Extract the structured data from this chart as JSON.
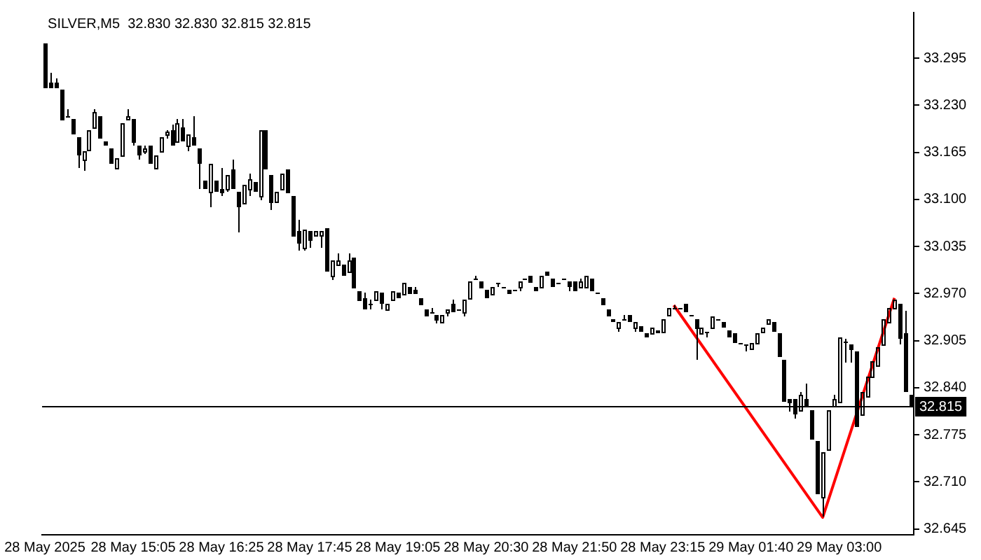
{
  "chart_data": {
    "type": "candlestick",
    "title": "SILVER,M5  32.830 32.830 32.815 32.815",
    "color": "#000000",
    "categories": [
      "28 May 2025",
      null,
      null,
      null,
      null,
      null,
      null,
      null,
      null,
      null,
      null,
      null,
      null,
      null,
      null,
      null,
      "28 May 15:05",
      null,
      null,
      null,
      null,
      null,
      null,
      null,
      null,
      null,
      null,
      null,
      null,
      null,
      null,
      null,
      "28 May 16:25",
      null,
      null,
      null,
      null,
      null,
      null,
      null,
      null,
      null,
      null,
      null,
      null,
      null,
      null,
      null,
      "28 May 17:45",
      null,
      null,
      null,
      null,
      null,
      null,
      null,
      null,
      null,
      null,
      null,
      null,
      null,
      null,
      null,
      "28 May 19:05",
      null,
      null,
      null,
      null,
      null,
      null,
      null,
      null,
      null,
      null,
      null,
      null,
      null,
      null,
      null,
      "28 May 20:30",
      null,
      null,
      null,
      null,
      null,
      null,
      null,
      null,
      null,
      null,
      null,
      null,
      null,
      null,
      null,
      "28 May 21:50",
      null,
      null,
      null,
      null,
      null,
      null,
      null,
      null,
      null,
      null,
      null,
      null,
      null,
      null,
      null,
      "28 May 23:15",
      null,
      null,
      null,
      null,
      null,
      null,
      null,
      null,
      null,
      null,
      null,
      null,
      null,
      null,
      null,
      "29 May 01:40",
      null,
      null,
      null,
      null,
      null,
      null,
      null,
      null,
      null,
      null,
      null,
      null,
      null,
      null,
      null,
      "29 May 03:00",
      null,
      null,
      null,
      null,
      null,
      null,
      null,
      null,
      null,
      null,
      null,
      null,
      null
    ],
    "ohlc": [
      [
        33.316,
        33.316,
        33.254,
        33.254
      ],
      [
        33.261,
        33.275,
        33.254,
        33.254
      ],
      [
        33.261,
        33.267,
        33.254,
        33.254
      ],
      [
        33.252,
        33.252,
        33.21,
        33.21
      ],
      [
        33.214,
        33.225,
        33.213,
        33.214
      ],
      [
        33.212,
        33.212,
        33.19,
        33.19
      ],
      [
        33.185,
        33.185,
        33.143,
        33.16
      ],
      [
        33.155,
        33.166,
        33.139,
        33.166
      ],
      [
        33.168,
        33.196,
        33.168,
        33.196
      ],
      [
        33.199,
        33.225,
        33.199,
        33.22
      ],
      [
        33.215,
        33.215,
        33.184,
        33.184
      ],
      [
        33.18,
        33.18,
        33.174,
        33.174
      ],
      [
        33.17,
        33.17,
        33.15,
        33.15
      ],
      [
        33.144,
        33.157,
        33.144,
        33.157
      ],
      [
        33.16,
        33.206,
        33.16,
        33.206
      ],
      [
        33.211,
        33.225,
        33.211,
        33.215
      ],
      [
        33.212,
        33.212,
        33.174,
        33.179
      ],
      [
        33.175,
        33.175,
        33.155,
        33.16
      ],
      [
        33.166,
        33.175,
        33.163,
        33.171
      ],
      [
        33.175,
        33.175,
        33.15,
        33.15
      ],
      [
        33.144,
        33.16,
        33.141,
        33.16
      ],
      [
        33.166,
        33.185,
        33.166,
        33.185
      ],
      [
        33.19,
        33.196,
        33.184,
        33.193
      ],
      [
        33.196,
        33.203,
        33.175,
        33.175
      ],
      [
        33.181,
        33.212,
        33.181,
        33.205
      ],
      [
        33.199,
        33.212,
        33.181,
        33.181
      ],
      [
        33.175,
        33.19,
        33.166,
        33.19
      ],
      [
        33.185,
        33.215,
        33.174,
        33.174
      ],
      [
        33.17,
        33.17,
        33.114,
        33.15
      ],
      [
        33.127,
        33.127,
        33.114,
        33.114
      ],
      [
        33.111,
        33.15,
        33.09,
        33.15
      ],
      [
        33.127,
        33.127,
        33.111,
        33.111
      ],
      [
        33.114,
        33.144,
        33.105,
        33.109
      ],
      [
        33.114,
        33.134,
        33.111,
        33.134
      ],
      [
        33.141,
        33.156,
        33.114,
        33.114
      ],
      [
        33.111,
        33.111,
        33.055,
        33.089
      ],
      [
        33.095,
        33.12,
        33.095,
        33.12
      ],
      [
        33.114,
        33.136,
        33.105,
        33.128
      ],
      [
        33.125,
        33.125,
        33.111,
        33.111
      ],
      [
        33.105,
        33.196,
        33.099,
        33.196
      ],
      [
        33.196,
        33.196,
        33.141,
        33.141
      ],
      [
        33.134,
        33.134,
        33.086,
        33.095
      ],
      [
        33.098,
        33.111,
        33.098,
        33.111
      ],
      [
        33.114,
        33.136,
        33.114,
        33.136
      ],
      [
        33.141,
        33.141,
        33.109,
        33.109
      ],
      [
        33.105,
        33.105,
        33.049,
        33.049
      ],
      [
        33.056,
        33.071,
        33.029,
        33.04
      ],
      [
        33.034,
        33.059,
        33.029,
        33.059
      ],
      [
        33.056,
        33.056,
        33.034,
        33.043
      ],
      [
        33.05,
        33.056,
        33.05,
        33.056
      ],
      [
        33.05,
        33.056,
        33.034,
        33.056
      ],
      [
        33.06,
        33.06,
        33.0,
        33.0
      ],
      [
        32.994,
        33.016,
        32.989,
        33.016
      ],
      [
        33.01,
        33.026,
        33.01,
        33.016
      ],
      [
        33.01,
        33.01,
        32.994,
        32.994
      ],
      [
        33.0,
        33.026,
        33.0,
        33.016
      ],
      [
        33.019,
        33.019,
        32.978,
        32.978
      ],
      [
        32.973,
        32.973,
        32.959,
        32.959
      ],
      [
        32.964,
        32.971,
        32.949,
        32.949
      ],
      [
        32.955,
        32.961,
        32.949,
        32.955
      ],
      [
        32.961,
        32.973,
        32.961,
        32.973
      ],
      [
        32.971,
        32.971,
        32.949,
        32.955
      ],
      [
        32.949,
        32.955,
        32.949,
        32.955
      ],
      [
        32.961,
        32.973,
        32.961,
        32.973
      ],
      [
        32.971,
        32.971,
        32.964,
        32.964
      ],
      [
        32.969,
        32.985,
        32.969,
        32.985
      ],
      [
        32.98,
        32.98,
        32.969,
        32.969
      ],
      [
        32.975,
        32.98,
        32.969,
        32.969
      ],
      [
        32.964,
        32.964,
        32.954,
        32.954
      ],
      [
        32.949,
        32.949,
        32.939,
        32.939
      ],
      [
        32.945,
        32.95,
        32.945,
        32.945
      ],
      [
        32.94,
        32.94,
        32.929,
        32.933
      ],
      [
        32.93,
        32.94,
        32.93,
        32.94
      ],
      [
        32.944,
        32.949,
        32.939,
        32.949
      ],
      [
        32.955,
        32.961,
        32.945,
        32.945
      ],
      [
        32.949,
        32.949,
        32.949,
        32.949
      ],
      [
        32.945,
        32.961,
        32.939,
        32.961
      ],
      [
        32.964,
        32.986,
        32.964,
        32.986
      ],
      [
        32.99,
        32.995,
        32.99,
        32.99
      ],
      [
        32.986,
        32.986,
        32.978,
        32.978
      ],
      [
        32.975,
        32.975,
        32.964,
        32.964
      ],
      [
        32.97,
        32.98,
        32.97,
        32.98
      ],
      [
        32.985,
        32.985,
        32.98,
        32.985
      ],
      [
        32.98,
        32.98,
        32.98,
        32.98
      ],
      [
        32.975,
        32.975,
        32.97,
        32.97
      ],
      [
        32.975,
        32.975,
        32.975,
        32.975
      ],
      [
        32.98,
        32.986,
        32.973,
        32.986
      ],
      [
        32.99,
        32.99,
        32.99,
        32.99
      ],
      [
        32.995,
        32.995,
        32.985,
        32.985
      ],
      [
        32.98,
        32.98,
        32.973,
        32.973
      ],
      [
        32.98,
        32.995,
        32.98,
        32.995
      ],
      [
        33.0,
        33.0,
        32.994,
        32.994
      ],
      [
        32.99,
        32.99,
        32.98,
        32.98
      ],
      [
        32.985,
        32.985,
        32.985,
        32.985
      ],
      [
        32.99,
        32.99,
        32.99,
        32.99
      ],
      [
        32.986,
        32.986,
        32.973,
        32.98
      ],
      [
        32.986,
        32.986,
        32.973,
        32.973
      ],
      [
        32.98,
        32.99,
        32.98,
        32.986
      ],
      [
        32.98,
        32.995,
        32.98,
        32.995
      ],
      [
        32.99,
        32.99,
        32.973,
        32.973
      ],
      [
        32.971,
        32.971,
        32.971,
        32.971
      ],
      [
        32.964,
        32.964,
        32.954,
        32.954
      ],
      [
        32.949,
        32.949,
        32.939,
        32.939
      ],
      [
        32.934,
        32.934,
        32.93,
        32.93
      ],
      [
        32.923,
        32.93,
        32.918,
        32.93
      ],
      [
        32.935,
        32.94,
        32.935,
        32.935
      ],
      [
        32.94,
        32.94,
        32.93,
        32.93
      ],
      [
        32.923,
        32.93,
        32.918,
        32.93
      ],
      [
        32.925,
        32.925,
        32.918,
        32.918
      ],
      [
        32.915,
        32.915,
        32.909,
        32.909
      ],
      [
        32.915,
        32.924,
        32.915,
        32.924
      ],
      [
        32.92,
        32.92,
        32.915,
        32.915
      ],
      [
        32.918,
        32.934,
        32.918,
        32.934
      ],
      [
        32.94,
        32.95,
        32.94,
        32.95
      ],
      [
        32.95,
        32.954,
        32.95,
        32.95
      ],
      [
        32.95,
        32.95,
        32.95,
        32.95
      ],
      [
        32.955,
        32.955,
        32.945,
        32.945
      ],
      [
        32.94,
        32.94,
        32.94,
        32.94
      ],
      [
        32.934,
        32.934,
        32.878,
        32.922
      ],
      [
        32.915,
        32.924,
        32.915,
        32.924
      ],
      [
        32.918,
        32.918,
        32.91,
        32.918
      ],
      [
        32.924,
        32.939,
        32.924,
        32.939
      ],
      [
        32.934,
        32.934,
        32.934,
        32.934
      ],
      [
        32.931,
        32.931,
        32.924,
        32.924
      ],
      [
        32.919,
        32.919,
        32.909,
        32.909
      ],
      [
        32.915,
        32.915,
        32.902,
        32.902
      ],
      [
        32.902,
        32.902,
        32.902,
        32.902
      ],
      [
        32.899,
        32.899,
        32.89,
        32.899
      ],
      [
        32.894,
        32.902,
        32.894,
        32.902
      ],
      [
        32.902,
        32.915,
        32.902,
        32.915
      ],
      [
        32.918,
        32.924,
        32.918,
        32.924
      ],
      [
        32.929,
        32.934,
        32.929,
        32.934
      ],
      [
        32.931,
        32.931,
        32.918,
        32.918
      ],
      [
        32.916,
        32.916,
        32.883,
        32.883
      ],
      [
        32.879,
        32.879,
        32.82,
        32.82
      ],
      [
        32.825,
        32.825,
        32.807,
        32.819
      ],
      [
        32.825,
        32.825,
        32.798,
        32.804
      ],
      [
        32.809,
        32.834,
        32.809,
        32.83
      ],
      [
        32.825,
        32.845,
        32.814,
        32.814
      ],
      [
        32.809,
        32.809,
        32.768,
        32.768
      ],
      [
        32.766,
        32.766,
        32.694,
        32.694
      ],
      [
        32.689,
        32.751,
        32.662,
        32.751
      ],
      [
        32.754,
        32.809,
        32.754,
        32.809
      ],
      [
        32.814,
        32.83,
        32.814,
        32.825
      ],
      [
        32.82,
        32.91,
        32.82,
        32.91
      ],
      [
        32.903,
        32.908,
        32.874,
        32.903
      ],
      [
        32.9,
        32.9,
        32.875,
        32.893
      ],
      [
        32.891,
        32.891,
        32.785,
        32.785
      ],
      [
        32.804,
        32.834,
        32.804,
        32.834
      ],
      [
        32.829,
        32.855,
        32.829,
        32.855
      ],
      [
        32.855,
        32.877,
        32.855,
        32.877
      ],
      [
        32.871,
        32.896,
        32.871,
        32.896
      ],
      [
        32.899,
        32.934,
        32.899,
        32.934
      ],
      [
        32.931,
        32.95,
        32.931,
        32.95
      ],
      [
        32.95,
        32.962,
        32.95,
        32.962
      ],
      [
        32.956,
        32.956,
        32.899,
        32.908
      ],
      [
        32.916,
        32.946,
        32.834,
        32.834
      ],
      [
        32.83,
        32.83,
        32.815,
        32.815
      ]
    ],
    "series": [
      {
        "type": "line",
        "color": "#ff0000",
        "values": [
          null,
          null,
          null,
          null,
          null,
          null,
          null,
          null,
          null,
          null,
          null,
          null,
          null,
          null,
          null,
          null,
          null,
          null,
          null,
          null,
          null,
          null,
          null,
          null,
          null,
          null,
          null,
          null,
          null,
          null,
          null,
          null,
          null,
          null,
          null,
          null,
          null,
          null,
          null,
          null,
          null,
          null,
          null,
          null,
          null,
          null,
          null,
          null,
          null,
          null,
          null,
          null,
          null,
          null,
          null,
          null,
          null,
          null,
          null,
          null,
          null,
          null,
          null,
          null,
          null,
          null,
          null,
          null,
          null,
          null,
          null,
          null,
          null,
          null,
          null,
          null,
          null,
          null,
          null,
          null,
          null,
          null,
          null,
          null,
          null,
          null,
          null,
          null,
          null,
          null,
          null,
          null,
          null,
          null,
          null,
          null,
          null,
          null,
          null,
          null,
          null,
          null,
          null,
          null,
          null,
          null,
          null,
          null,
          null,
          null,
          null,
          null,
          null,
          null,
          32.954,
          null,
          null,
          null,
          null,
          null,
          null,
          null,
          null,
          null,
          null,
          null,
          null,
          null,
          null,
          null,
          null,
          null,
          null,
          null,
          null,
          null,
          null,
          null,
          null,
          null,
          null,
          32.661,
          null,
          null,
          null,
          null,
          null,
          null,
          null,
          null,
          null,
          null,
          null,
          null,
          32.964,
          null,
          null,
          null
        ]
      }
    ],
    "ylim": [
      32.637,
      33.358
    ],
    "yticks": [
      {
        "value": 33.295,
        "label": "33.295"
      },
      {
        "value": 33.23,
        "label": "33.230"
      },
      {
        "value": 33.165,
        "label": "33.165"
      },
      {
        "value": 33.1,
        "label": "33.100"
      },
      {
        "value": 33.035,
        "label": "33.035"
      },
      {
        "value": 32.97,
        "label": "32.970"
      },
      {
        "value": 32.905,
        "label": "32.905"
      },
      {
        "value": 32.84,
        "label": "32.840"
      },
      {
        "value": 32.775,
        "label": "32.775"
      },
      {
        "value": 32.71,
        "label": "32.710"
      },
      {
        "value": 32.645,
        "label": "32.645"
      }
    ],
    "ref_lines": [
      {
        "axis": "y",
        "value": 32.815,
        "label": "32.815",
        "color": "#000000"
      }
    ],
    "grid": false,
    "legend": false
  }
}
